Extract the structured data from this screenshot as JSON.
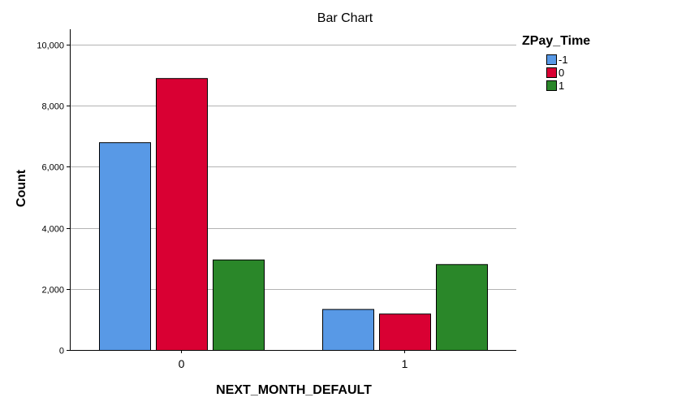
{
  "chart_data": {
    "type": "bar",
    "title": "Bar Chart",
    "xlabel": "NEXT_MONTH_DEFAULT",
    "ylabel": "Count",
    "categories": [
      "0",
      "1"
    ],
    "series": [
      {
        "name": "-1",
        "values": [
          6800,
          1340
        ]
      },
      {
        "name": "0",
        "values": [
          8900,
          1190
        ]
      },
      {
        "name": "1",
        "values": [
          2960,
          2810
        ]
      }
    ],
    "ylim": [
      0,
      10500
    ],
    "yticks": [
      0,
      2000,
      4000,
      6000,
      8000,
      10000
    ],
    "ytick_labels": [
      "0",
      "2,000",
      "4,000",
      "6,000",
      "8,000",
      "10,000"
    ],
    "legend_title": "ZPay_Time",
    "legend_position": "right",
    "grid": true,
    "series_colors": [
      "#5899E6",
      "#D90033",
      "#2A8729"
    ]
  }
}
